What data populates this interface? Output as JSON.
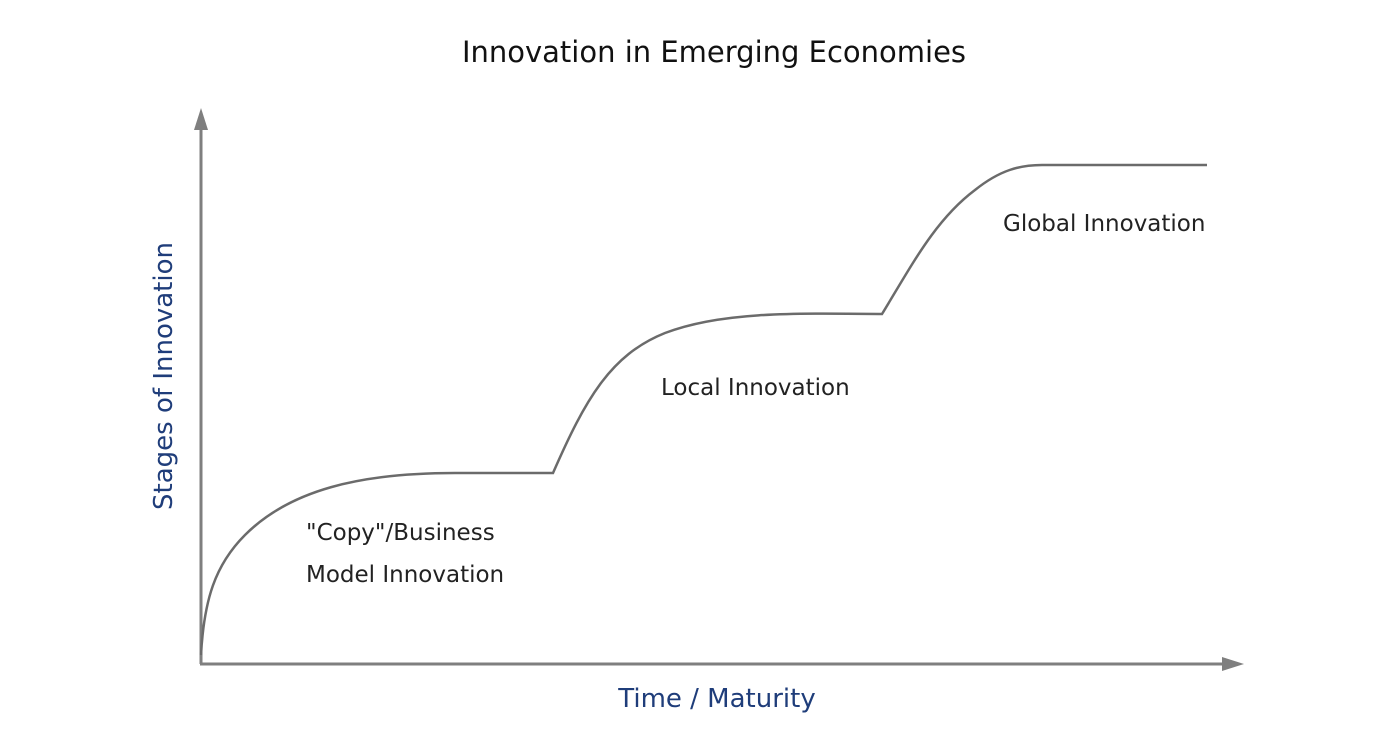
{
  "title": "Innovation in Emerging Economies",
  "axes": {
    "x_label": "Time / Maturity",
    "y_label": "Stages of Innovation"
  },
  "stages": [
    {
      "line1": "\"Copy\"/Business",
      "line2": "Model Innovation"
    },
    {
      "line1": "Local Innovation"
    },
    {
      "line1": "Global Innovation"
    }
  ],
  "colors": {
    "title": "#111111",
    "axis_label": "#1f3d7a",
    "axis": "#7f7f7f",
    "curve": "#6b6b6b",
    "stage_label": "#222222"
  }
}
